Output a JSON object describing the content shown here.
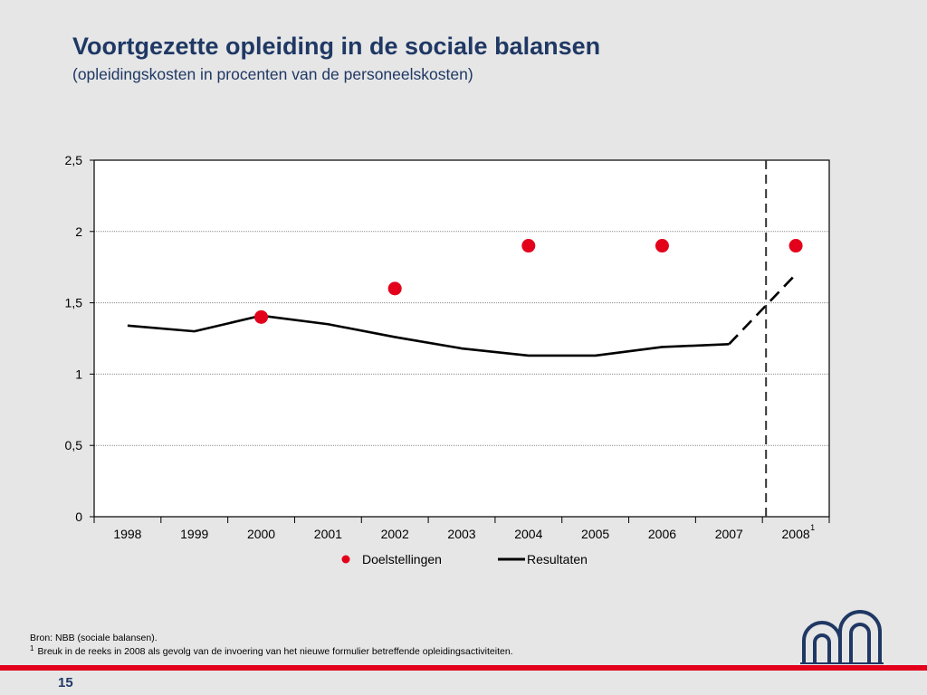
{
  "header": {
    "title": "Voortgezette opleiding in de sociale balansen",
    "subtitle": "(opleidingskosten in procenten van de personeelskosten)"
  },
  "chart_data": {
    "type": "line",
    "title": "",
    "xlabel": "",
    "ylabel": "",
    "categories": [
      "1998",
      "1999",
      "2000",
      "2001",
      "2002",
      "2003",
      "2004",
      "2005",
      "2006",
      "2007",
      "2008"
    ],
    "ylim": [
      0,
      2.5
    ],
    "yticks": [
      "0",
      "0,5",
      "1",
      "1,5",
      "2",
      "2,5"
    ],
    "grid": true,
    "break_marker": {
      "between": [
        "2007",
        "2008"
      ],
      "label": "1"
    },
    "series": [
      {
        "name": "Resultaten",
        "style": "line",
        "color": "#000000",
        "values": [
          1.34,
          1.3,
          1.41,
          1.35,
          1.26,
          1.18,
          1.13,
          1.13,
          1.19,
          1.21,
          1.7
        ],
        "dashed_from_index": 9
      },
      {
        "name": "Doelstellingen",
        "style": "points",
        "color": "#e3001b",
        "values": [
          null,
          null,
          1.4,
          null,
          1.6,
          null,
          1.9,
          null,
          1.9,
          null,
          1.9
        ]
      }
    ],
    "legend": {
      "placement": "bottom"
    }
  },
  "footer": {
    "source": "Bron: NBB (sociale balansen).",
    "footnote_mark": "1",
    "footnote": "Breuk in de reeks in 2008  als gevolg van de invoering van het nieuwe formulier betreffende opleidingsactiviteiten.",
    "page_number": "15"
  },
  "colors": {
    "title": "#1f3864",
    "accent_red": "#e3001b",
    "background": "#e6e6e6"
  },
  "logo": {
    "icon": "nbb-logo-icon"
  }
}
